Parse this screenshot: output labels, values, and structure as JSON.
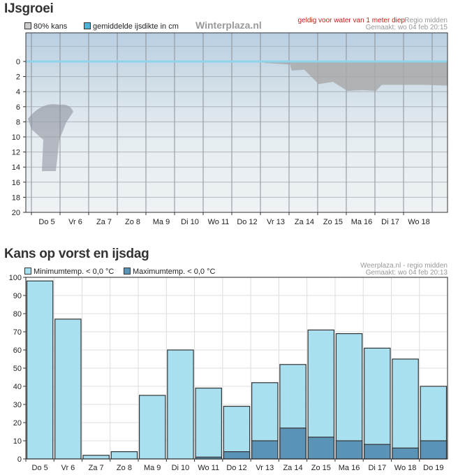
{
  "chart_data": [
    {
      "type": "area",
      "title": "IJsgroei",
      "legend": [
        "80% kans",
        "gemiddelde ijsdikte in cm"
      ],
      "watermark": "Winterplaza.nl",
      "note": "geldig voor water van 1 meter diep",
      "region": "Regio midden",
      "made": "Gemaakt: wo 04 feb 20:15",
      "categories": [
        "Do 5",
        "Vr 6",
        "Za 7",
        "Zo 8",
        "Ma 9",
        "Di 10",
        "Wo 11",
        "Do 12",
        "Vr 13",
        "Za 14",
        "Zo 15",
        "Ma 16",
        "Di 17",
        "Wo 18"
      ],
      "yticks": [
        0,
        2,
        4,
        6,
        8,
        10,
        12,
        14,
        16,
        18,
        20
      ],
      "ylim": [
        0,
        20
      ],
      "y_inverted": true,
      "series": [
        {
          "name": "80% kans",
          "color": "#a8a8a8",
          "x": [
            7.6,
            8.5,
            8.55,
            9.0,
            9.5,
            10.0,
            10.5,
            11.0,
            11.5,
            11.7,
            13.2,
            14.0,
            14.3
          ],
          "y": [
            0.2,
            0.4,
            1.2,
            1.1,
            3.0,
            2.7,
            3.9,
            3.8,
            3.9,
            3.1,
            3.1,
            3.2,
            3.2
          ]
        },
        {
          "name": "gemiddelde ijsdikte in cm",
          "color": "#8fd3ea",
          "x": [
            -0.7,
            14.3
          ],
          "y": [
            0,
            0
          ]
        }
      ]
    },
    {
      "type": "bar",
      "title": "Kans op vorst en ijsdag",
      "legend": [
        "Minimumtemp. < 0,0 °C",
        "Maximumtemp. < 0,0 °C"
      ],
      "source": "Weerplaza.nl - regio midden",
      "made": "Gemaakt: wo 04 feb 20:13",
      "categories": [
        "Do 5",
        "Vr 6",
        "Za 7",
        "Zo 8",
        "Ma 9",
        "Di 10",
        "Wo 11",
        "Do 12",
        "Vr 13",
        "Za 14",
        "Zo 15",
        "Ma 16",
        "Di 17",
        "Wo 18",
        "Do 19"
      ],
      "yticks": [
        0,
        10,
        20,
        30,
        40,
        50,
        60,
        70,
        80,
        90,
        100
      ],
      "ylim": [
        0,
        100
      ],
      "series": [
        {
          "name": "Minimumtemp. < 0,0 °C",
          "color": "#a8e0f0",
          "values": [
            98,
            77,
            2,
            4,
            35,
            60,
            39,
            29,
            42,
            52,
            71,
            69,
            61,
            55,
            40
          ]
        },
        {
          "name": "Maximumtemp. < 0,0 °C",
          "color": "#5a93b5",
          "values": [
            0,
            0,
            0,
            0,
            0,
            0,
            1,
            4,
            10,
            17,
            12,
            10,
            8,
            6,
            10
          ]
        }
      ]
    }
  ]
}
